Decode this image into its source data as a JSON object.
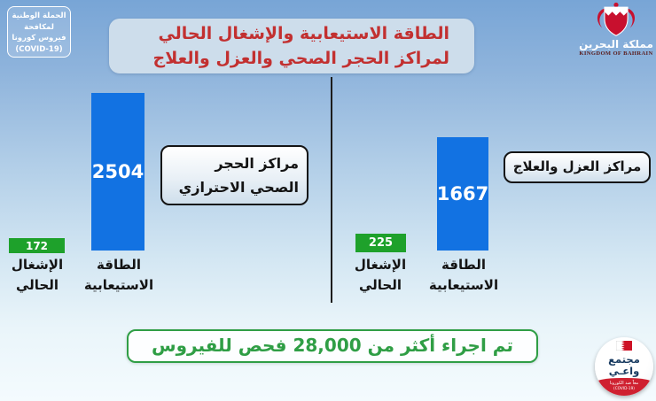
{
  "colors": {
    "bar_blue": "#1272e2",
    "occupancy_green": "#1ea12b",
    "title_red": "#c23030",
    "banner_green": "#2f9e45",
    "badge_navy": "#16395f",
    "flag_red": "#ce1126"
  },
  "header": {
    "campaign_badge_lines": [
      "الحملة الوطنية",
      "لمكافحة",
      "فيروس كورونا",
      "(COVID-19)"
    ],
    "title_lines": [
      "الطاقة الاستيعابية والإشغال الحالي",
      "لمراكز الحجر الصحي والعزل والعلاج"
    ],
    "logo": {
      "arabic": "مملكة البحرين",
      "english": "KINGDOM OF BAHRAIN"
    }
  },
  "chart_data": [
    {
      "type": "bar",
      "title": "مراكز الحجر الصحي الاحترازي",
      "categories": [
        "الطاقة الاستيعابية",
        "الإشغال الحالي"
      ],
      "values": [
        2504,
        172
      ],
      "bar_colors": [
        "#1272e2",
        "#1ea12b"
      ],
      "legend_position": "none"
    },
    {
      "type": "bar",
      "title": "مراكز العزل والعلاج",
      "categories": [
        "الطاقة الاستيعابية",
        "الإشغال الحالي"
      ],
      "values": [
        1667,
        225
      ],
      "bar_colors": [
        "#1272e2",
        "#1ea12b"
      ],
      "legend_position": "none"
    }
  ],
  "sections": {
    "quarantine": {
      "box_lines": [
        "مراكز الحجر",
        "الصحي الاحترازي"
      ],
      "capacity_value": "2504",
      "capacity_label_lines": [
        "الطاقة",
        "الاستيعابية"
      ],
      "occupancy_value": "172",
      "occupancy_label_lines": [
        "الإشغال",
        "الحالي"
      ]
    },
    "isolation": {
      "box_label": "مراكز العزل والعلاج",
      "capacity_value": "1667",
      "capacity_label_lines": [
        "الطاقة",
        "الاستيعابية"
      ],
      "occupancy_value": "225",
      "occupancy_label_lines": [
        "الإشغال",
        "الحالي"
      ]
    }
  },
  "footer": {
    "tests_banner": "تم اجراء أكثر من 28,000 فحص للفيروس",
    "community_badge": {
      "lines": [
        "مجتمع",
        "واعـي"
      ],
      "sub_lines": [
        "معاً ضد الكورونا",
        "(COVID-19)"
      ]
    }
  }
}
